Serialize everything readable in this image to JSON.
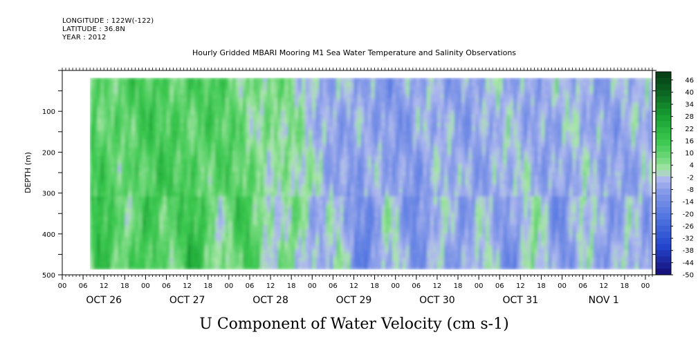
{
  "header": {
    "longitude": "LONGITUDE : 122W(-122)",
    "latitude": "LATITUDE : 36.8N",
    "year": "YEAR : 2012"
  },
  "chart_data": {
    "type": "heatmap",
    "title": "Hourly Gridded MBARI Mooring M1 Sea Water Temperature and Salinity Observations",
    "subtitle": "U Component of Water Velocity (cm s-1)",
    "xlabel": "",
    "ylabel": "DEPTH (m)",
    "x_hour_ticks": [
      "00",
      "06",
      "12",
      "18",
      "00",
      "06",
      "12",
      "18",
      "00",
      "06",
      "12",
      "18",
      "00",
      "06",
      "12",
      "18",
      "00",
      "06",
      "12",
      "18",
      "00",
      "06",
      "12",
      "18",
      "00",
      "06",
      "12",
      "18",
      "00"
    ],
    "x_day_labels": [
      "OCT 26",
      "OCT 27",
      "OCT 28",
      "OCT 29",
      "OCT 30",
      "OCT 31",
      "NOV  1"
    ],
    "x_range_hours": [
      0,
      170
    ],
    "data_x_range_hours": [
      8,
      170
    ],
    "y_ticks": [
      100,
      200,
      300,
      400,
      500
    ],
    "ylim": [
      500,
      0
    ],
    "data_depth_range": [
      18,
      486
    ],
    "colorbar": {
      "labels": [
        "46",
        "40",
        "34",
        "28",
        "22",
        "16",
        "10",
        "4",
        "-2",
        "-8",
        "-14",
        "-20",
        "-26",
        "-32",
        "-38",
        "-44",
        "-50"
      ],
      "min": -50,
      "max": 50,
      "step": 3
    },
    "field_day_means": [
      {
        "day": "OCT 26",
        "mean": 12
      },
      {
        "day": "OCT 27",
        "mean": 14
      },
      {
        "day": "OCT 28",
        "mean": 6
      },
      {
        "day": "OCT 29",
        "mean": -8
      },
      {
        "day": "OCT 30",
        "mean": -6
      },
      {
        "day": "OCT 31",
        "mean": -4
      },
      {
        "day": "NOV  1",
        "mean": -5
      }
    ]
  }
}
